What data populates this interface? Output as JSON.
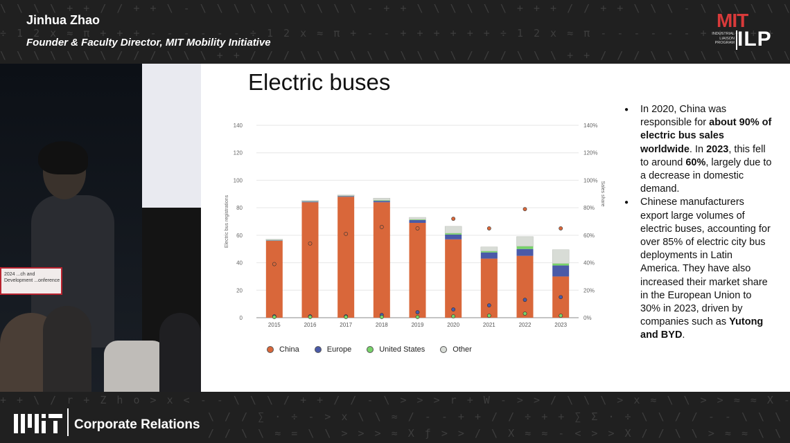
{
  "header": {
    "speaker_name": "Jinhua Zhao",
    "speaker_title": "Founder & Faculty Director, MIT Mobility Initiative",
    "logo_mit": "MIT",
    "logo_program": "INDUSTRIAL LIAISON PROGRAM",
    "logo_ilp": "ILP"
  },
  "video": {
    "podium_sign": "2024 ...ch and Development ...onference"
  },
  "slide": {
    "title": "Electric buses",
    "bullets": [
      {
        "parts": [
          {
            "text": "In 2020, China was responsible for ",
            "bold": false
          },
          {
            "text": "about 90% of electric bus sales worldwide",
            "bold": true
          },
          {
            "text": ". In ",
            "bold": false
          },
          {
            "text": "2023",
            "bold": true
          },
          {
            "text": ", this fell to around ",
            "bold": false
          },
          {
            "text": "60%",
            "bold": true
          },
          {
            "text": ", largely due to a decrease in domestic demand.",
            "bold": false
          }
        ]
      },
      {
        "parts": [
          {
            "text": "Chinese manufacturers export large volumes of electric buses, accounting for over 85% of electric city bus deployments in Latin America. They have also increased their market share in the European Union to 30% in 2023, driven by companies such as ",
            "bold": false
          },
          {
            "text": "Yutong and BYD",
            "bold": true
          },
          {
            "text": ".",
            "bold": false
          }
        ]
      }
    ]
  },
  "chart_data": {
    "type": "bar",
    "stacked": true,
    "categories": [
      "2015",
      "2016",
      "2017",
      "2018",
      "2019",
      "2020",
      "2021",
      "2022",
      "2023"
    ],
    "ylabel": "Electric bus registrations",
    "y2label": "Sales share",
    "ylim": [
      0,
      140
    ],
    "y2lim": [
      0,
      140
    ],
    "yticks": [
      "0",
      "20",
      "40",
      "60",
      "80",
      "100",
      "120",
      "140"
    ],
    "y2ticks": [
      "0%",
      "20%",
      "40%",
      "60%",
      "80%",
      "100%",
      "120%",
      "140%"
    ],
    "legend_position": "bottom",
    "series": [
      {
        "name": "China",
        "color": "#d9673a",
        "values": [
          56,
          84,
          88,
          84,
          69,
          57,
          43,
          45,
          30
        ]
      },
      {
        "name": "Europe",
        "color": "#4a5aa8",
        "values": [
          0.3,
          0.5,
          0.5,
          1,
          2,
          3.5,
          4.5,
          5,
          8
        ]
      },
      {
        "name": "United States",
        "color": "#78d36a",
        "values": [
          0.3,
          0.3,
          0.3,
          0.5,
          0.5,
          1,
          1,
          2,
          1.5
        ]
      },
      {
        "name": "Other",
        "color": "#d8dcd6",
        "values": [
          0.5,
          0.5,
          0.5,
          1.5,
          1.5,
          5,
          3,
          7,
          10
        ]
      }
    ],
    "share_series": [
      {
        "name": "China",
        "color": "#d9673a",
        "values": [
          39,
          54,
          61,
          66,
          65,
          null,
          65,
          79,
          65
        ]
      },
      {
        "name": "Europe",
        "color": "#4a5aa8",
        "values": [
          1,
          1,
          1,
          2,
          4,
          6,
          9,
          13,
          15
        ]
      },
      {
        "name": "United States",
        "color": "#78d36a",
        "values": [
          0.5,
          0.5,
          0.5,
          0.5,
          0.5,
          1,
          1.5,
          3,
          1.5
        ]
      },
      {
        "name": "China 2020",
        "color": "#d9673a",
        "values": [
          null,
          null,
          null,
          null,
          null,
          72,
          null,
          null,
          null
        ]
      }
    ]
  },
  "legend": [
    {
      "label": "China",
      "color": "#d9673a"
    },
    {
      "label": "Europe",
      "color": "#4a5aa8"
    },
    {
      "label": "United States",
      "color": "#78d36a"
    },
    {
      "label": "Other",
      "color": "#d8dcd6"
    }
  ],
  "footer": {
    "logo": "MIT",
    "label": "Corporate Relations"
  }
}
